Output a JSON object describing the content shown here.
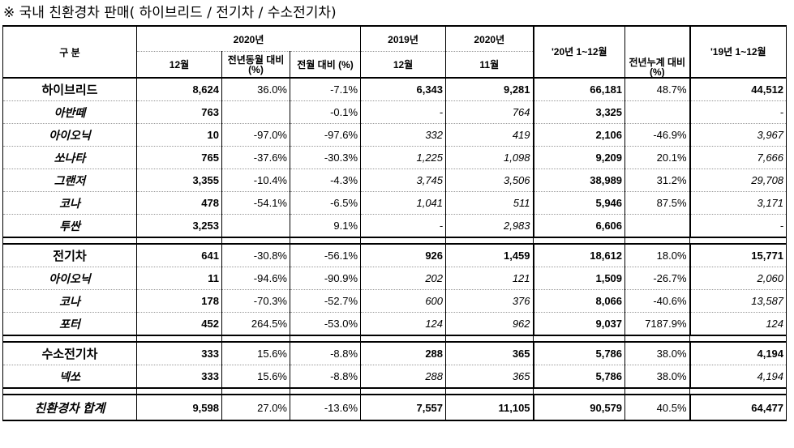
{
  "title": "※ 국내 친환경차 판매( 하이브리드 / 전기차 / 수소전기차)",
  "header": {
    "category": "구 분",
    "h2020": "2020년",
    "h12m": "12월",
    "yoy_same": "전년동월 대비 (%)",
    "mom": "전월 대비 (%)",
    "h2019": "2019년",
    "h2019_12": "12월",
    "h2020b": "2020년",
    "h11m": "11월",
    "ytd20": "'20년 1~12월",
    "ytd_yoy": "전년누계 대비 (%)",
    "ytd19": "'19년 1~12월"
  },
  "rows": [
    {
      "name": "하이브리드",
      "kind": "group",
      "c": [
        "8,624",
        "36.0%",
        "-7.1%",
        "6,343",
        "9,281",
        "66,181",
        "48.7%",
        "44,512"
      ]
    },
    {
      "name": "아반떼",
      "kind": "item",
      "c": [
        "763",
        "",
        "-0.1%",
        "-",
        "764",
        "3,325",
        "",
        "-"
      ]
    },
    {
      "name": "아이오닉",
      "kind": "item",
      "c": [
        "10",
        "-97.0%",
        "-97.6%",
        "332",
        "419",
        "2,106",
        "-46.9%",
        "3,967"
      ]
    },
    {
      "name": "쏘나타",
      "kind": "item",
      "c": [
        "765",
        "-37.6%",
        "-30.3%",
        "1,225",
        "1,098",
        "9,209",
        "20.1%",
        "7,666"
      ]
    },
    {
      "name": "그랜저",
      "kind": "item",
      "c": [
        "3,355",
        "-10.4%",
        "-4.3%",
        "3,745",
        "3,506",
        "38,989",
        "31.2%",
        "29,708"
      ]
    },
    {
      "name": "코나",
      "kind": "item",
      "c": [
        "478",
        "-54.1%",
        "-6.5%",
        "1,041",
        "511",
        "5,946",
        "87.5%",
        "3,171"
      ]
    },
    {
      "name": "투싼",
      "kind": "item",
      "c": [
        "3,253",
        "",
        "9.1%",
        "-",
        "2,983",
        "6,606",
        "",
        "-"
      ]
    },
    {
      "name": "전기차",
      "kind": "group",
      "c": [
        "641",
        "-30.8%",
        "-56.1%",
        "926",
        "1,459",
        "18,612",
        "18.0%",
        "15,771"
      ]
    },
    {
      "name": "아이오닉",
      "kind": "item",
      "c": [
        "11",
        "-94.6%",
        "-90.9%",
        "202",
        "121",
        "1,509",
        "-26.7%",
        "2,060"
      ]
    },
    {
      "name": "코나",
      "kind": "item",
      "c": [
        "178",
        "-70.3%",
        "-52.7%",
        "600",
        "376",
        "8,066",
        "-40.6%",
        "13,587"
      ]
    },
    {
      "name": "포터",
      "kind": "item",
      "c": [
        "452",
        "264.5%",
        "-53.0%",
        "124",
        "962",
        "9,037",
        "7187.9%",
        "124"
      ]
    },
    {
      "name": "수소전기차",
      "kind": "group",
      "c": [
        "333",
        "15.6%",
        "-8.8%",
        "288",
        "365",
        "5,786",
        "38.0%",
        "4,194"
      ]
    },
    {
      "name": "넥쏘",
      "kind": "item",
      "c": [
        "333",
        "15.6%",
        "-8.8%",
        "288",
        "365",
        "5,786",
        "38.0%",
        "4,194"
      ]
    },
    {
      "name": "친환경차 합계",
      "kind": "total",
      "c": [
        "9,598",
        "27.0%",
        "-13.6%",
        "7,557",
        "11,105",
        "90,579",
        "40.5%",
        "64,477"
      ]
    }
  ]
}
